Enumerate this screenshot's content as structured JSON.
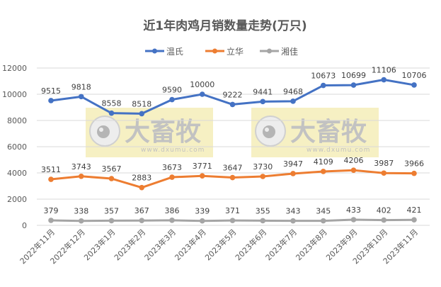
{
  "chart_data": {
    "type": "line",
    "title": "近1年肉鸡月销数量走势(万只)",
    "xlabel": "",
    "ylabel": "",
    "ylim": [
      0,
      12000
    ],
    "yticks": [
      0,
      2000,
      4000,
      6000,
      8000,
      10000,
      12000
    ],
    "grid": true,
    "legend_position": "top",
    "categories": [
      "2022年11月",
      "2022年12月",
      "2023年1月",
      "2023年2月",
      "2023年3月",
      "2023年4月",
      "2023年5月",
      "2023年6月",
      "2023年7月",
      "2023年8月",
      "2023年9月",
      "2023年10月",
      "2023年11月"
    ],
    "series": [
      {
        "name": "温氏",
        "color": "#4472C4",
        "values": [
          9515,
          9818,
          8558,
          8518,
          9590,
          10000,
          9222,
          9441,
          9468,
          10673,
          10699,
          11106,
          10706
        ]
      },
      {
        "name": "立华",
        "color": "#ED7D31",
        "values": [
          3511,
          3743,
          3567,
          2883,
          3673,
          3771,
          3647,
          3730,
          3947,
          4109,
          4206,
          3987,
          3966
        ]
      },
      {
        "name": "湘佳",
        "color": "#A5A5A5",
        "values": [
          379,
          338,
          357,
          367,
          386,
          339,
          371,
          355,
          343,
          345,
          433,
          402,
          421
        ]
      }
    ]
  },
  "watermark": {
    "text": "大畜牧",
    "url_text": "www.dxumu.com"
  }
}
